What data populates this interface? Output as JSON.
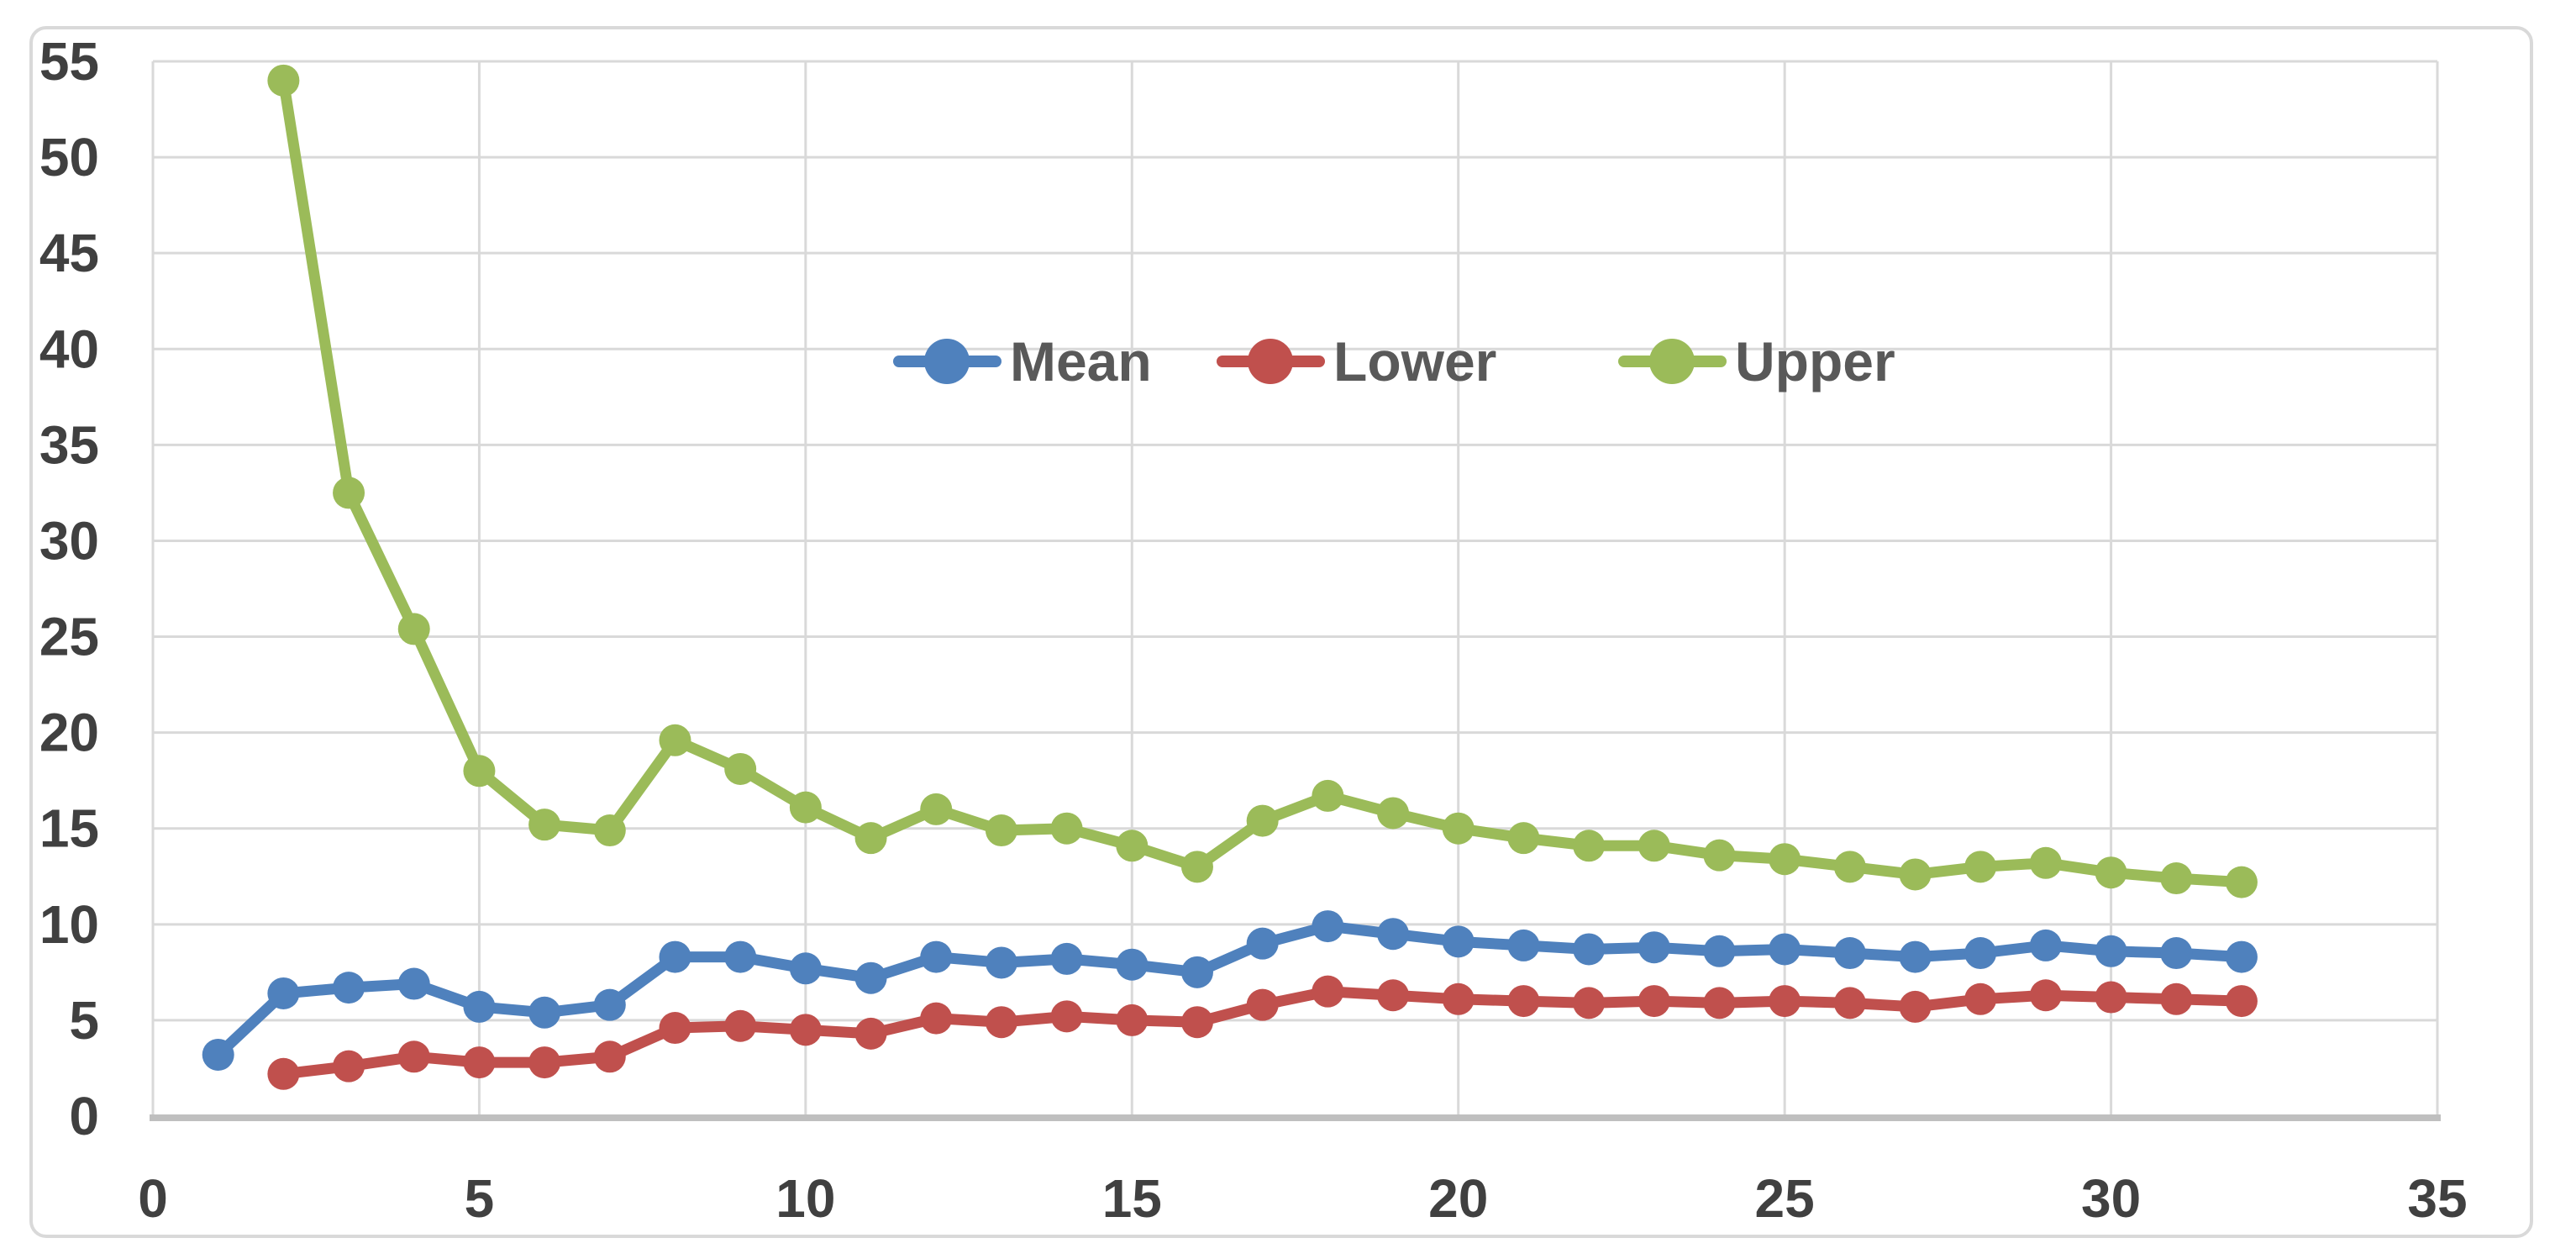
{
  "chart_data": {
    "type": "line",
    "title": "",
    "xlabel": "",
    "ylabel": "",
    "x": [
      1,
      2,
      3,
      4,
      5,
      6,
      7,
      8,
      9,
      10,
      11,
      12,
      13,
      14,
      15,
      16,
      17,
      18,
      19,
      20,
      21,
      22,
      23,
      24,
      25,
      26,
      27,
      28,
      29,
      30,
      31,
      32
    ],
    "series": [
      {
        "name": "Mean",
        "color": "#4F81BD",
        "values": [
          3.2,
          6.4,
          6.7,
          6.9,
          5.7,
          5.4,
          5.8,
          8.3,
          8.3,
          7.7,
          7.2,
          8.3,
          8.0,
          8.2,
          7.9,
          7.5,
          9.0,
          9.9,
          9.5,
          9.1,
          8.9,
          8.7,
          8.8,
          8.6,
          8.7,
          8.5,
          8.3,
          8.5,
          8.9,
          8.6,
          8.5,
          8.3
        ]
      },
      {
        "name": "Lower",
        "color": "#C0504D",
        "values": [
          null,
          2.2,
          2.6,
          3.1,
          2.8,
          2.8,
          3.1,
          4.6,
          4.7,
          4.5,
          4.3,
          5.1,
          4.9,
          5.2,
          5.0,
          4.9,
          5.8,
          6.5,
          6.3,
          6.1,
          6.0,
          5.9,
          6.0,
          5.9,
          6.0,
          5.9,
          5.7,
          6.1,
          6.3,
          6.2,
          6.1,
          6.0
        ]
      },
      {
        "name": "Upper",
        "color": "#9BBB59",
        "values": [
          null,
          54.0,
          32.5,
          25.4,
          18.0,
          15.2,
          14.9,
          19.6,
          18.1,
          16.1,
          14.5,
          16.0,
          14.9,
          15.0,
          14.1,
          13.0,
          15.4,
          16.7,
          15.8,
          15.0,
          14.5,
          14.1,
          14.1,
          13.6,
          13.4,
          13.0,
          12.6,
          13.0,
          13.2,
          12.7,
          12.4,
          12.2
        ]
      }
    ],
    "xlim": [
      0,
      35
    ],
    "ylim": [
      0,
      55
    ],
    "x_ticks": [
      0,
      5,
      10,
      15,
      20,
      25,
      30,
      35
    ],
    "y_ticks": [
      0,
      5,
      10,
      15,
      20,
      25,
      30,
      35,
      40,
      45,
      50,
      55
    ],
    "grid": true,
    "legend_position": "inside-top-center",
    "legend_entries": [
      "Mean",
      "Lower",
      "Upper"
    ]
  },
  "style": {
    "background": "#FFFFFF",
    "grid_color": "#D9D9D9",
    "axis_line_color": "#BFBFBF",
    "tick_label_color": "#404040",
    "legend_text_color": "#595959",
    "frame_border_color": "#D9D9D9"
  }
}
